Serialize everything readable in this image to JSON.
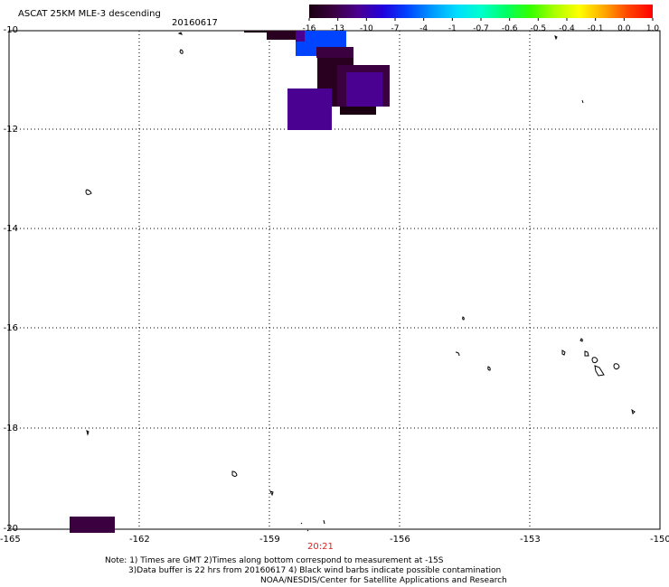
{
  "header": {
    "title": "ASCAT 25KM MLE-3 descending",
    "date": "20160617"
  },
  "colorbar": {
    "labels": [
      "-16",
      "-13",
      "-10",
      "-7",
      "-4",
      "-1",
      "-0.7",
      "-0.6",
      "-0.5",
      "-0.4",
      "-0.1",
      "0.0",
      "1.0"
    ],
    "colors": [
      "#1a0010",
      "#3a0040",
      "#4a0090",
      "#2200dd",
      "#0044ff",
      "#0099ff",
      "#00ddff",
      "#00ffcc",
      "#00ff66",
      "#33ff00",
      "#aaff00",
      "#ffff00",
      "#ffaa00",
      "#ff4400",
      "#ff0000"
    ]
  },
  "axes": {
    "lat_labels": [
      "-10",
      "-12",
      "-14",
      "-16",
      "-18",
      "-20"
    ],
    "lon_labels": [
      "-165",
      "-162",
      "-159",
      "-156",
      "-153",
      "-150"
    ]
  },
  "swath_time": "20:21",
  "notes": {
    "line1": "Note: 1) Times are GMT 2)Times along bottom correspond to measurement at -15S",
    "line2": "3)Data buffer is 22 hrs from 20160617 4) Black wind barbs indicate possible contamination",
    "line3": "NOAA/NESDIS/Center for Satellite Applications and Research"
  }
}
